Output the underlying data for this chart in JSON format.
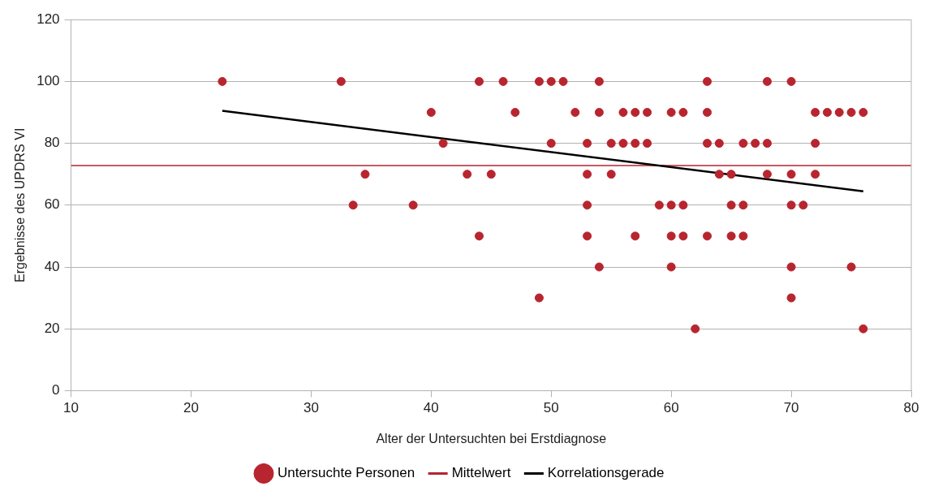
{
  "chart_data": {
    "type": "scatter",
    "xlabel": "Alter der Untersuchten bei Erstdiagnose",
    "ylabel": "Ergebnisse des UPDRS VI",
    "xlim": [
      10,
      80
    ],
    "xticks": [
      10,
      20,
      30,
      40,
      50,
      60,
      70,
      80
    ],
    "ylim": [
      0,
      120
    ],
    "yticks": [
      0,
      20,
      40,
      60,
      80,
      100,
      120
    ],
    "grid": "y",
    "legend": "bottom",
    "series": [
      {
        "name": "Untersuchte Personen",
        "color": "#b8252f",
        "type": "scatter",
        "marker": "circle",
        "x": [
          22.6,
          32.5,
          44,
          46,
          49,
          50,
          51,
          54,
          63,
          68,
          70,
          40,
          47,
          52,
          54,
          56,
          57,
          58,
          60,
          61,
          63,
          72,
          73,
          74,
          75,
          76,
          41,
          50,
          53,
          55,
          56,
          57,
          58,
          63,
          64,
          66,
          67,
          68,
          72,
          34.5,
          43,
          45,
          53,
          55,
          64,
          65,
          68,
          70,
          72,
          33.5,
          38.5,
          53,
          59,
          60,
          61,
          65,
          66,
          70,
          71,
          44,
          53,
          57,
          60,
          61,
          63,
          65,
          66,
          54,
          60,
          70,
          75,
          49,
          70,
          62,
          76
        ],
        "values": [
          100,
          100,
          100,
          100,
          100,
          100,
          100,
          100,
          100,
          100,
          100,
          90,
          90,
          90,
          90,
          90,
          90,
          90,
          90,
          90,
          90,
          90,
          90,
          90,
          90,
          90,
          80,
          80,
          80,
          80,
          80,
          80,
          80,
          80,
          80,
          80,
          80,
          80,
          80,
          70,
          70,
          70,
          70,
          70,
          70,
          70,
          70,
          70,
          70,
          60,
          60,
          60,
          60,
          60,
          60,
          60,
          60,
          60,
          60,
          50,
          50,
          50,
          50,
          50,
          50,
          50,
          50,
          40,
          40,
          40,
          40,
          30,
          30,
          20,
          20
        ]
      },
      {
        "name": "Korrelationsgerade",
        "color": "#000000",
        "type": "line",
        "marker": "none",
        "x": [
          22.6,
          76
        ],
        "values": [
          90.5,
          64.5
        ]
      }
    ],
    "ref_lines": [
      {
        "axis": "y",
        "value": 72.8,
        "label": "Mittelwert",
        "color": "#b22530"
      }
    ]
  }
}
